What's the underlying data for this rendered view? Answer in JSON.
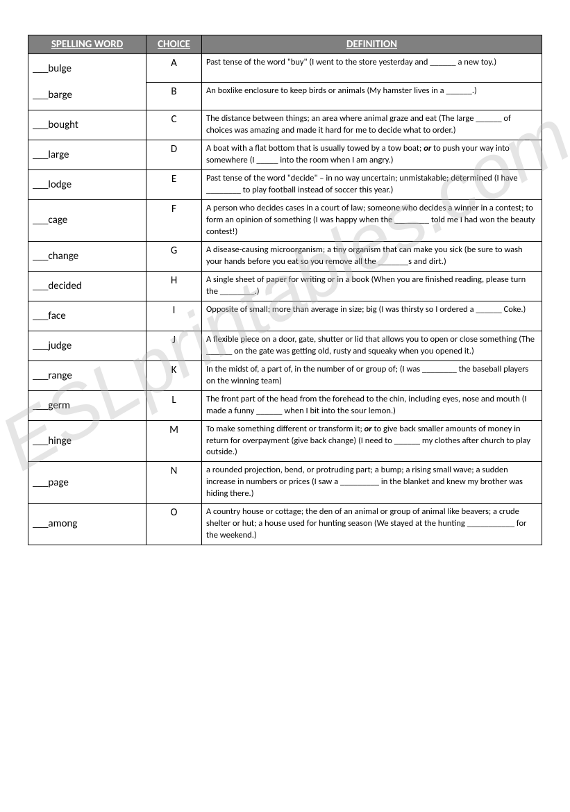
{
  "watermark": "ESLprintables.com",
  "headers": {
    "word": "SPELLING WORD",
    "choice": "CHOICE",
    "definition": "DEFINITION"
  },
  "blank_prefix": "___",
  "rows": [
    {
      "words": [
        "bulge",
        "barge"
      ],
      "choices": [
        "A",
        "B"
      ],
      "definitions": [
        "Past tense of the word \"buy\" (I went to the store yesterday and ______ a new toy.)",
        "An boxlike enclosure to keep birds or animals (My hamster lives in a ______.)"
      ]
    },
    {
      "words": [
        "bought"
      ],
      "choices": [
        "C"
      ],
      "definitions": [
        "The distance between things; an area where animal graze and eat (The large ______ of choices was amazing and made it hard for me to decide what to order.)"
      ]
    },
    {
      "words": [
        "large"
      ],
      "choices": [
        "D"
      ],
      "definitions": [
        "A boat with a flat bottom that is usually towed by a tow boat; or to push your way into somewhere (I _____ into the room when I am angry.)"
      ]
    },
    {
      "words": [
        "lodge"
      ],
      "choices": [
        "E"
      ],
      "definitions": [
        "Past tense of the word \"decide\" – in no way uncertain; unmistakable; determined (I have ________ to play football instead of soccer this year.)"
      ]
    },
    {
      "words": [
        "cage"
      ],
      "choices": [
        "F"
      ],
      "definitions": [
        "A person who decides cases in a court of law; someone who decides a winner in a contest; to form an opinion of something (I was happy when the ________ told me I had won the beauty contest!)"
      ]
    },
    {
      "words": [
        "change"
      ],
      "choices": [
        "G"
      ],
      "definitions": [
        "A disease-causing microorganism; a tiny organism that can make you sick (be sure to wash your hands before you eat so you remove all the _______s and dirt.)"
      ]
    },
    {
      "words": [
        "decided"
      ],
      "choices": [
        "H"
      ],
      "definitions": [
        "A single sheet of paper for writing or in a book (When you are finished reading, please turn the ________.)"
      ]
    },
    {
      "words": [
        "face"
      ],
      "choices": [
        "I"
      ],
      "definitions": [
        "Opposite of small; more than average in size; big (I was thirsty so I ordered a ______ Coke.)"
      ]
    },
    {
      "words": [
        "judge"
      ],
      "choices": [
        "J"
      ],
      "definitions": [
        "A flexible piece on a door, gate, shutter or lid that allows you to open or close something (The ______ on the gate was getting old, rusty and squeaky when you opened it.)"
      ]
    },
    {
      "words": [
        "range"
      ],
      "choices": [
        "K"
      ],
      "definitions": [
        "In the midst of, a part of, in the number of or group of; (I was ________ the baseball players on the winning team)"
      ]
    },
    {
      "words": [
        "germ"
      ],
      "choices": [
        "L"
      ],
      "definitions": [
        "The front part of the head from the forehead to the chin, including eyes, nose and mouth (I made a funny ______ when I bit into the sour lemon.)"
      ]
    },
    {
      "words": [
        "hinge"
      ],
      "choices": [
        "M"
      ],
      "definitions": [
        "To make something different or transform it; or to give back smaller amounts of money in return for overpayment (give back change) (I need to ______ my clothes after church to play outside.)"
      ]
    },
    {
      "words": [
        "page"
      ],
      "choices": [
        "N"
      ],
      "definitions": [
        "a rounded projection, bend, or protruding part;  a bump; a rising small wave; a sudden increase in numbers or prices (I saw a _________ in the blanket and knew my brother was hiding there.)"
      ]
    },
    {
      "words": [
        "among"
      ],
      "choices": [
        "O"
      ],
      "definitions": [
        "A country house or cottage; the den of an animal or group of animal like beavers; a crude shelter or hut; a house used for hunting season (We stayed at the hunting ___________ for the weekend.)"
      ]
    }
  ]
}
